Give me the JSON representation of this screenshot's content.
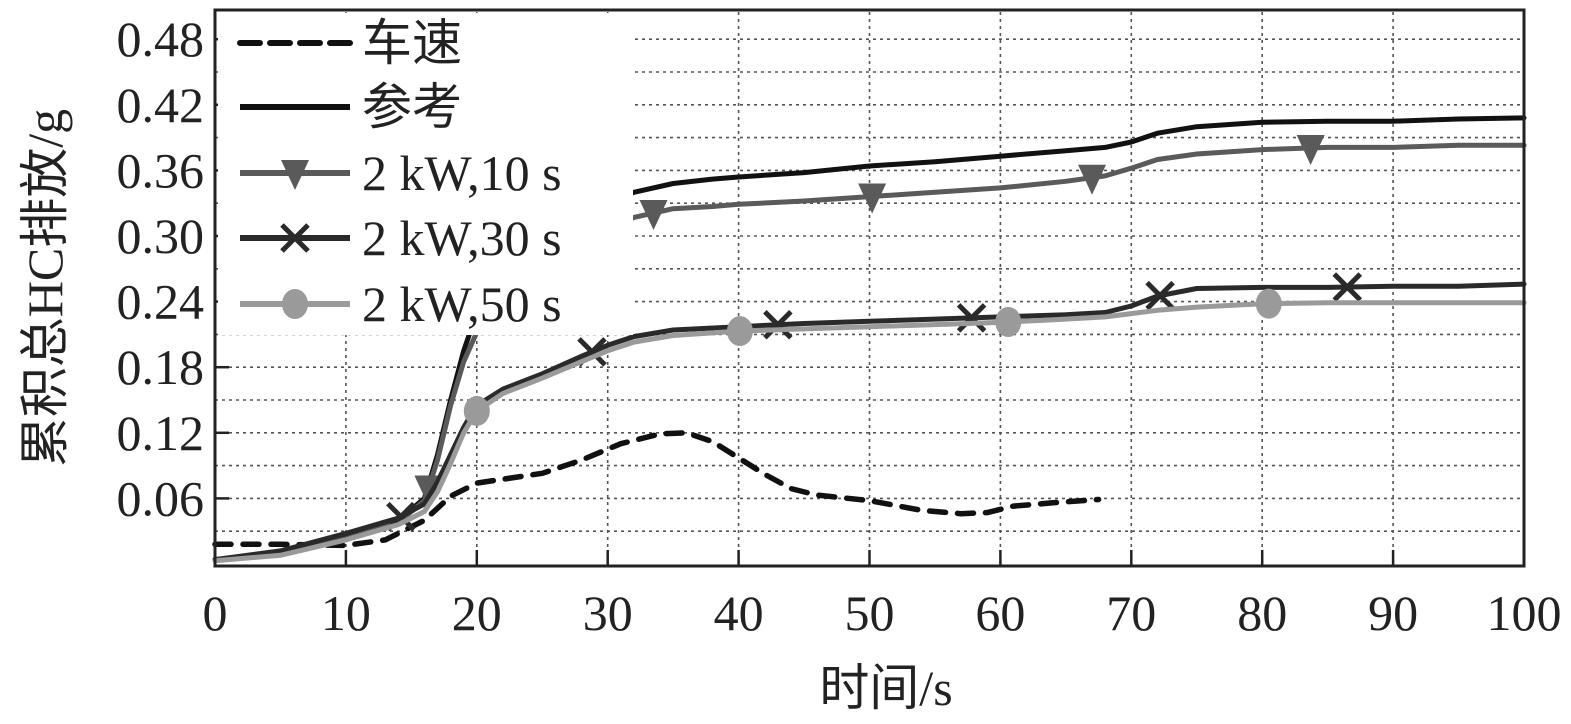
{
  "chart_data": {
    "type": "line",
    "title": "",
    "xlabel": "时间/s",
    "ylabel": "累积总HC排放/g",
    "xlim": [
      0,
      100
    ],
    "ylim": [
      0,
      0.51
    ],
    "x_ticks": [
      0,
      10,
      20,
      30,
      40,
      50,
      60,
      70,
      80,
      90,
      100
    ],
    "x_tick_labels": [
      "0",
      "10",
      "20",
      "30",
      "40",
      "50",
      "60",
      "70",
      "80",
      "90",
      "100"
    ],
    "y_ticks": [
      0.06,
      0.12,
      0.18,
      0.24,
      0.3,
      0.36,
      0.42,
      0.48
    ],
    "y_tick_labels": [
      "0.06",
      "0.12",
      "0.18",
      "0.24",
      "0.30",
      "0.36",
      "0.42",
      "0.48"
    ],
    "grid": true,
    "legend_position": "upper-left",
    "series": [
      {
        "name": "车速",
        "style": "dashed",
        "color": "#111111",
        "marker": "none",
        "x": [
          0,
          5,
          10,
          13,
          16,
          18,
          20,
          25,
          28,
          31,
          34,
          36,
          38,
          40,
          42,
          44,
          46,
          50,
          54,
          57,
          59,
          61,
          64,
          67.5
        ],
        "y": [
          0.018,
          0.018,
          0.017,
          0.022,
          0.04,
          0.062,
          0.074,
          0.083,
          0.095,
          0.11,
          0.119,
          0.12,
          0.112,
          0.097,
          0.082,
          0.069,
          0.063,
          0.058,
          0.049,
          0.046,
          0.047,
          0.053,
          0.056,
          0.059
        ]
      },
      {
        "name": "参考",
        "style": "solid",
        "color": "#111111",
        "marker": "none",
        "x": [
          0,
          5,
          10,
          14,
          16,
          17,
          18,
          19,
          20,
          22,
          25,
          28,
          30,
          32,
          35,
          38,
          40,
          45,
          50,
          55,
          60,
          65,
          68,
          70,
          72,
          75,
          80,
          85,
          90,
          95,
          100
        ],
        "y": [
          0.004,
          0.01,
          0.025,
          0.04,
          0.06,
          0.1,
          0.15,
          0.195,
          0.23,
          0.26,
          0.29,
          0.315,
          0.33,
          0.34,
          0.348,
          0.352,
          0.354,
          0.358,
          0.364,
          0.368,
          0.373,
          0.378,
          0.381,
          0.386,
          0.394,
          0.4,
          0.404,
          0.405,
          0.405,
          0.407,
          0.408
        ]
      },
      {
        "name": "2 kW,10 s",
        "style": "solid",
        "color": "#5a5a5a",
        "marker": "triangle-down",
        "marker_x": [
          16.3,
          33.5,
          50.2,
          67,
          83.7
        ],
        "x": [
          0,
          5,
          10,
          14,
          16,
          17,
          18,
          19,
          20,
          22,
          25,
          28,
          30,
          32,
          35,
          38,
          40,
          45,
          50,
          55,
          60,
          65,
          68,
          70,
          72,
          75,
          80,
          85,
          90,
          95,
          100
        ],
        "y": [
          0.004,
          0.01,
          0.023,
          0.038,
          0.058,
          0.095,
          0.145,
          0.185,
          0.212,
          0.24,
          0.265,
          0.29,
          0.305,
          0.317,
          0.325,
          0.327,
          0.329,
          0.332,
          0.336,
          0.34,
          0.344,
          0.35,
          0.355,
          0.362,
          0.37,
          0.375,
          0.379,
          0.381,
          0.381,
          0.383,
          0.383
        ]
      },
      {
        "name": "2 kW,30 s",
        "style": "solid",
        "color": "#2a2a2a",
        "marker": "x",
        "marker_x": [
          14.2,
          28.8,
          43,
          57.8,
          72.2,
          86.5
        ],
        "x": [
          0,
          5,
          10,
          14,
          16,
          17,
          18,
          19,
          20,
          22,
          25,
          28,
          30,
          32,
          35,
          40,
          45,
          50,
          55,
          60,
          65,
          68,
          70,
          72,
          75,
          80,
          85,
          90,
          95,
          100
        ],
        "y": [
          0.004,
          0.012,
          0.028,
          0.042,
          0.055,
          0.075,
          0.1,
          0.125,
          0.145,
          0.16,
          0.174,
          0.19,
          0.2,
          0.208,
          0.214,
          0.217,
          0.22,
          0.222,
          0.224,
          0.226,
          0.228,
          0.23,
          0.236,
          0.245,
          0.252,
          0.253,
          0.253,
          0.254,
          0.254,
          0.256
        ]
      },
      {
        "name": "2 kW,50 s",
        "style": "solid",
        "color": "#9a9a9a",
        "marker": "circle",
        "marker_x": [
          20,
          40.1,
          60.6,
          80.5
        ],
        "x": [
          0,
          5,
          10,
          14,
          16,
          17,
          18,
          19,
          20,
          22,
          25,
          28,
          30,
          32,
          35,
          40,
          45,
          50,
          55,
          60,
          65,
          68,
          70,
          72,
          75,
          80,
          85,
          90,
          95,
          100
        ],
        "y": [
          0.003,
          0.008,
          0.022,
          0.036,
          0.048,
          0.066,
          0.092,
          0.12,
          0.14,
          0.156,
          0.17,
          0.185,
          0.195,
          0.203,
          0.209,
          0.213,
          0.215,
          0.217,
          0.219,
          0.221,
          0.224,
          0.226,
          0.229,
          0.232,
          0.235,
          0.238,
          0.239,
          0.239,
          0.239,
          0.239
        ]
      }
    ]
  }
}
